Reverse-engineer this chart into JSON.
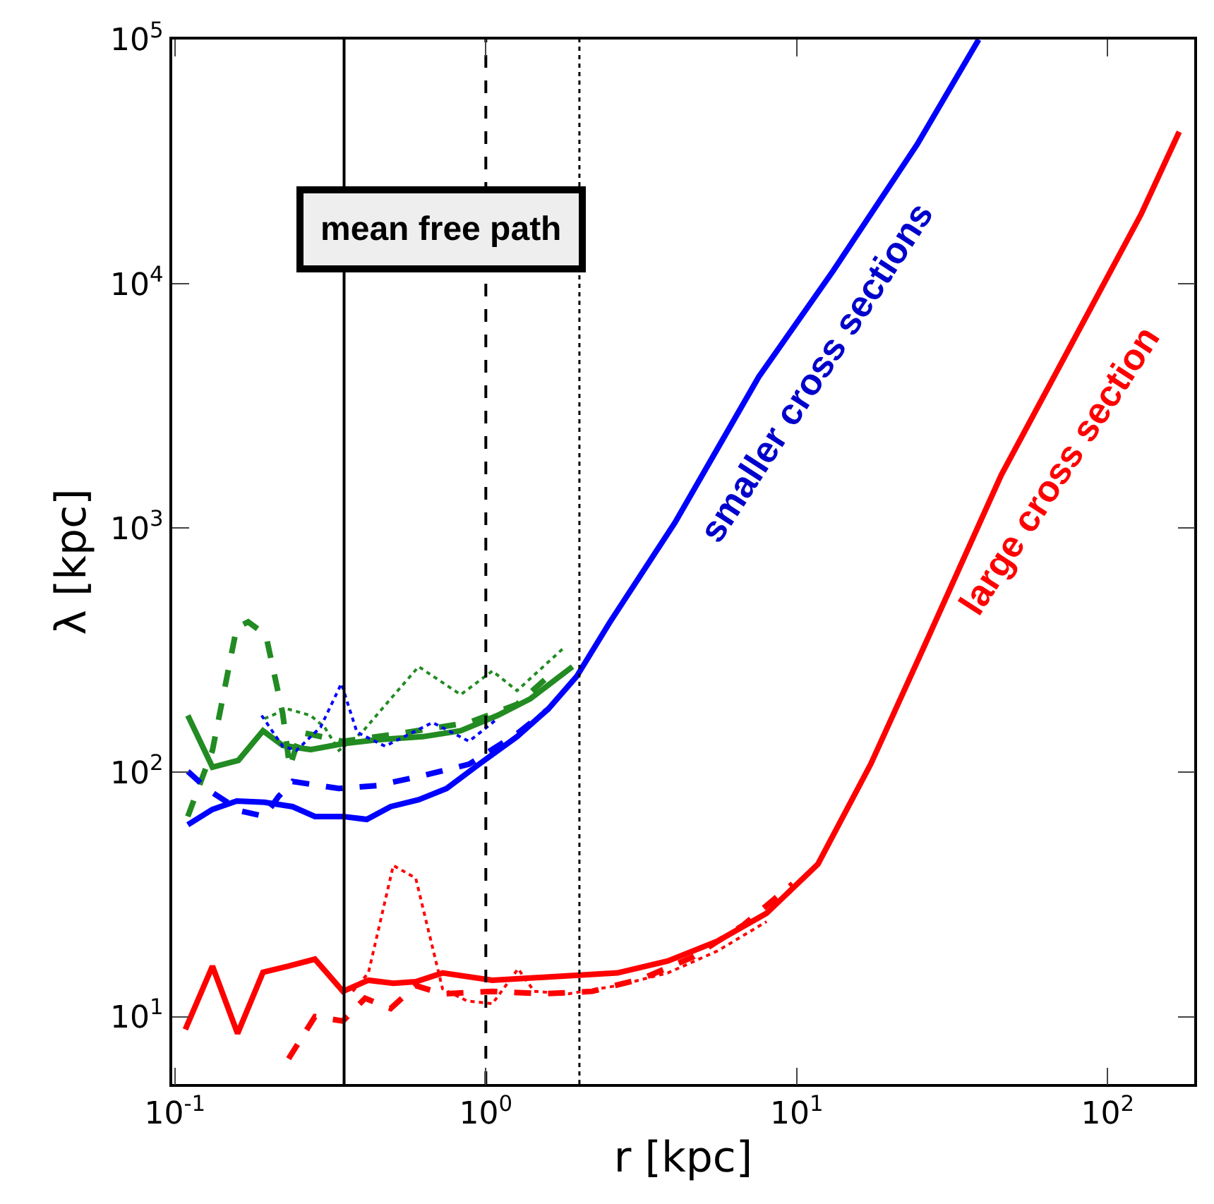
{
  "chart_data": {
    "type": "line",
    "xlabel": "r [kpc]",
    "ylabel": "λ [kpc]",
    "log": "xy",
    "grid": false,
    "marker": "none",
    "xlim": [
      0.098,
      190
    ],
    "ylim": [
      5.3,
      100000
    ],
    "xticks": [
      {
        "value": 0.1,
        "label": "10$^{-1}$"
      },
      {
        "value": 1,
        "label": "10$^{0}$"
      },
      {
        "value": 10,
        "label": "10$^{1}$"
      },
      {
        "value": 100,
        "label": "10$^{2}$"
      }
    ],
    "yticks": [
      {
        "value": 10,
        "label": "10$^{1}$"
      },
      {
        "value": 100,
        "label": "10$^{2}$"
      },
      {
        "value": 1000,
        "label": "10$^{3}$"
      },
      {
        "value": 10000,
        "label": "10$^{4}$"
      },
      {
        "value": 100000,
        "label": "10$^{5}$"
      }
    ],
    "series": [
      {
        "color": "#228b22",
        "line_style": "solid",
        "x": [
          0.11,
          0.132,
          0.16,
          0.192,
          0.222,
          0.273,
          0.347,
          0.446,
          0.627,
          0.83,
          1.09,
          1.39,
          1.9
        ],
        "values": [
          171,
          105,
          112,
          148,
          129,
          124,
          131,
          136,
          140,
          148,
          171,
          200,
          271
        ]
      },
      {
        "color": "#228b22",
        "line_style": "dashed",
        "x": [
          0.11,
          0.132,
          0.158,
          0.172,
          0.196,
          0.222,
          0.234,
          0.254,
          0.347,
          0.525,
          0.883,
          1.26,
          1.59
        ],
        "values": [
          66,
          123,
          392,
          413,
          366,
          175,
          105,
          146,
          134,
          144,
          160,
          190,
          247
        ]
      },
      {
        "color": "#228b22",
        "line_style": "dotted",
        "x": [
          0.194,
          0.23,
          0.273,
          0.303,
          0.337,
          0.4,
          0.494,
          0.608,
          0.83,
          1.05,
          1.26,
          1.77
        ],
        "values": [
          166,
          182,
          171,
          153,
          123,
          146,
          200,
          271,
          208,
          260,
          216,
          321
        ]
      },
      {
        "color": "#0000ff",
        "line_style": "solid",
        "x": [
          0.11,
          0.132,
          0.158,
          0.194,
          0.239,
          0.282,
          0.347,
          0.414,
          0.494,
          0.608,
          0.748,
          0.951,
          1.26,
          1.59,
          1.96,
          2.5,
          4.06,
          7.55,
          13.1,
          24.4,
          38.5
        ],
        "values": [
          61,
          70.5,
          76.3,
          75.4,
          72.4,
          66,
          66,
          64.2,
          72.4,
          77.3,
          85.9,
          108,
          140,
          182,
          247,
          410,
          1054,
          4160,
          11300,
          37200,
          100000
        ]
      },
      {
        "color": "#0000ff",
        "line_style": "dashed",
        "x": [
          0.11,
          0.128,
          0.163,
          0.194,
          0.215,
          0.239,
          0.337,
          0.446,
          0.627,
          0.883,
          1.26,
          1.59
        ],
        "values": [
          101,
          84.8,
          69.5,
          66,
          79.4,
          91.8,
          85.9,
          88.3,
          96.9,
          108,
          144,
          182
        ]
      },
      {
        "color": "#0000ff",
        "line_style": "dotted",
        "x": [
          0.19,
          0.222,
          0.246,
          0.294,
          0.343,
          0.385,
          0.474,
          0.674,
          0.883,
          1.09
        ],
        "values": [
          171,
          128,
          123,
          153,
          231,
          146,
          128,
          160,
          134,
          166
        ]
      },
      {
        "color": "#ff0000",
        "line_style": "solid",
        "x": [
          0.108,
          0.132,
          0.159,
          0.192,
          0.232,
          0.282,
          0.347,
          0.419,
          0.504,
          0.595,
          0.726,
          1.05,
          1.53,
          2.65,
          3.85,
          5.57,
          8.0,
          11.7,
          17.3,
          25.4,
          45.5,
          76.4,
          128,
          170
        ],
        "values": [
          8.87,
          16.1,
          8.53,
          15.2,
          16.1,
          17.2,
          12.7,
          14.1,
          13.7,
          13.9,
          15.1,
          14.1,
          14.5,
          15.1,
          16.9,
          20.4,
          26.5,
          42.1,
          108,
          317,
          1650,
          5640,
          19200,
          41900
        ]
      },
      {
        "color": "#ff0000",
        "line_style": "dashed",
        "x": [
          0.232,
          0.282,
          0.347,
          0.409,
          0.494,
          0.595,
          0.726,
          1.05,
          1.53,
          2.2,
          3.18,
          4.65,
          6.7,
          9.7
        ],
        "values": [
          6.73,
          10,
          9.6,
          11.9,
          10.8,
          13.4,
          12.4,
          12.7,
          12.4,
          12.7,
          14.3,
          17.6,
          23.6,
          35
        ]
      },
      {
        "color": "#ff0000",
        "line_style": "dotted",
        "x": [
          0.373,
          0.419,
          0.504,
          0.595,
          0.726,
          0.87,
          1.05,
          1.27,
          1.43,
          1.84,
          2.65,
          3.85,
          5.57,
          8.0
        ],
        "values": [
          12.7,
          15.1,
          41.6,
          36.9,
          13,
          11.6,
          11.3,
          15.7,
          12.7,
          12.4,
          13.4,
          15.1,
          18.6,
          24.5
        ]
      }
    ],
    "ref_lines": [
      {
        "axis": "x",
        "value": 0.35,
        "color": "#000000",
        "line_style": "solid"
      },
      {
        "axis": "x",
        "value": 1,
        "color": "#000000",
        "line_style": "dashed"
      },
      {
        "axis": "x",
        "value": 2,
        "color": "#000000",
        "line_style": "dotted"
      }
    ],
    "annotations": [
      "mean free path",
      "smaller cross sections",
      "large cross section"
    ]
  }
}
